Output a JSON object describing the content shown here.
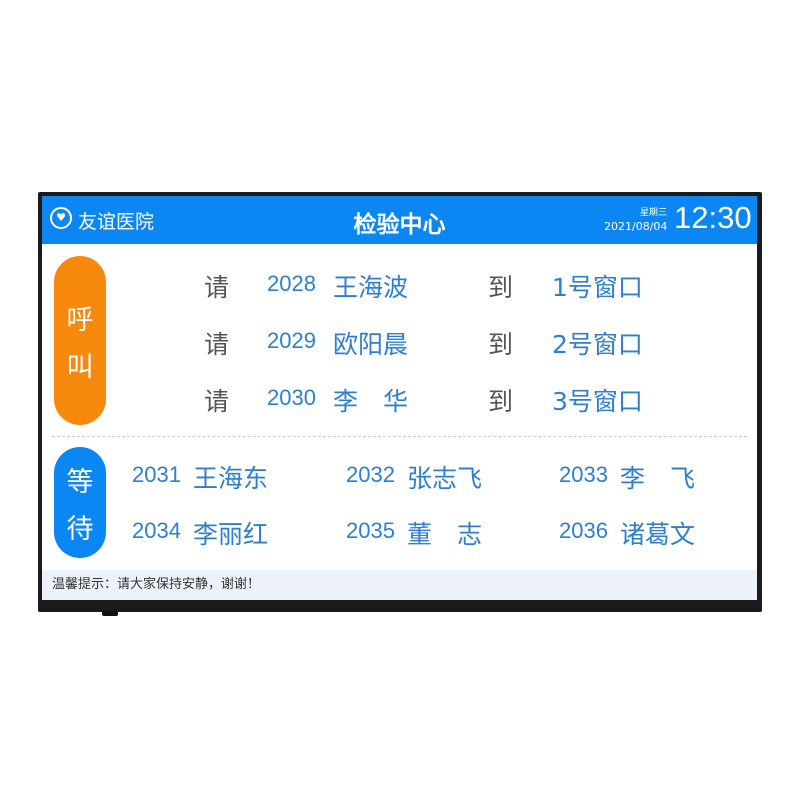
{
  "header": {
    "hospital": "友谊医院",
    "title": "检验中心",
    "weekday": "星期三",
    "date": "2021/08/04",
    "time": "12:30"
  },
  "call": {
    "label_1": "呼",
    "label_2": "叫",
    "please": "请",
    "to": "到",
    "rows": [
      {
        "number": "2028",
        "name": "王海波",
        "window": "1号窗口"
      },
      {
        "number": "2029",
        "name": "欧阳晨",
        "window": "2号窗口"
      },
      {
        "number": "2030",
        "name": "李　华",
        "window": "3号窗口"
      }
    ]
  },
  "wait": {
    "label_1": "等",
    "label_2": "待",
    "items": [
      {
        "number": "2031",
        "name": "王海东"
      },
      {
        "number": "2032",
        "name": "张志飞"
      },
      {
        "number": "2033",
        "name": "李　飞"
      },
      {
        "number": "2034",
        "name": "李丽红"
      },
      {
        "number": "2035",
        "name": "董　志"
      },
      {
        "number": "2036",
        "name": "诸葛文"
      }
    ]
  },
  "footer": {
    "notice": "温馨提示：请大家保持安静，谢谢！"
  },
  "colors": {
    "header": "#0a87f2",
    "call": "#f7890f",
    "text_blue": "#2e7fd0"
  }
}
